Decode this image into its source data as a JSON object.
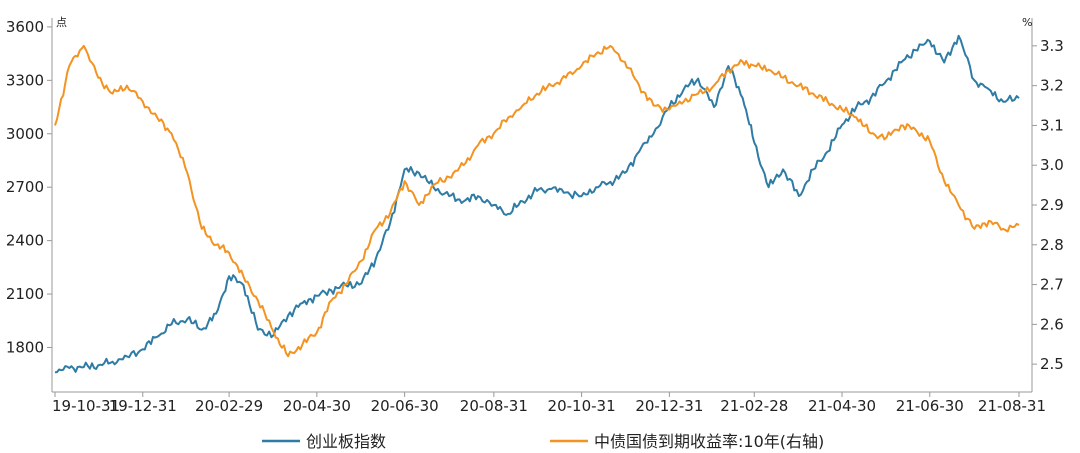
{
  "chart_data": {
    "type": "line",
    "x_tick_labels": [
      "19-10-31",
      "19-12-31",
      "20-02-29",
      "20-04-30",
      "20-06-30",
      "20-08-31",
      "20-10-31",
      "20-12-31",
      "21-02-28",
      "21-04-30",
      "21-06-30",
      "21-08-31"
    ],
    "left_axis": {
      "unit": "点",
      "ticks": [
        1800,
        2100,
        2400,
        2700,
        3000,
        3300,
        3600
      ],
      "range": [
        1550,
        3650
      ]
    },
    "right_axis": {
      "unit": "%",
      "ticks": [
        2.5,
        2.6,
        2.7,
        2.8,
        2.9,
        3.0,
        3.1,
        3.2,
        3.3
      ],
      "range": [
        2.43,
        3.37
      ]
    },
    "legend_position": "bottom",
    "grid": false,
    "series": [
      {
        "name": "创业板指数",
        "axis": "left",
        "color": "#2e7ca5",
        "points": [
          [
            "19-10-31",
            1660
          ],
          [
            "19-11-10",
            1685
          ],
          [
            "19-11-20",
            1690
          ],
          [
            "19-11-30",
            1700
          ],
          [
            "19-12-10",
            1720
          ],
          [
            "19-12-20",
            1750
          ],
          [
            "19-12-31",
            1790
          ],
          [
            "20-01-10",
            1860
          ],
          [
            "20-01-20",
            1930
          ],
          [
            "20-01-31",
            1960
          ],
          [
            "20-02-10",
            1900
          ],
          [
            "20-02-20",
            1990
          ],
          [
            "20-02-29",
            2200
          ],
          [
            "20-03-10",
            2150
          ],
          [
            "20-03-20",
            1900
          ],
          [
            "20-03-31",
            1870
          ],
          [
            "20-04-10",
            1980
          ],
          [
            "20-04-20",
            2050
          ],
          [
            "20-04-30",
            2090
          ],
          [
            "20-05-10",
            2120
          ],
          [
            "20-05-20",
            2150
          ],
          [
            "20-05-31",
            2160
          ],
          [
            "20-06-10",
            2300
          ],
          [
            "20-06-20",
            2500
          ],
          [
            "20-06-30",
            2800
          ],
          [
            "20-07-10",
            2780
          ],
          [
            "20-07-20",
            2700
          ],
          [
            "20-07-31",
            2650
          ],
          [
            "20-08-10",
            2620
          ],
          [
            "20-08-20",
            2650
          ],
          [
            "20-08-31",
            2600
          ],
          [
            "20-09-10",
            2550
          ],
          [
            "20-09-20",
            2620
          ],
          [
            "20-09-30",
            2680
          ],
          [
            "20-10-10",
            2690
          ],
          [
            "20-10-20",
            2670
          ],
          [
            "20-10-31",
            2650
          ],
          [
            "20-11-10",
            2700
          ],
          [
            "20-11-20",
            2730
          ],
          [
            "20-11-30",
            2780
          ],
          [
            "20-12-10",
            2900
          ],
          [
            "20-12-20",
            3000
          ],
          [
            "20-12-31",
            3150
          ],
          [
            "21-01-10",
            3250
          ],
          [
            "21-01-20",
            3310
          ],
          [
            "21-01-31",
            3150
          ],
          [
            "21-02-10",
            3380
          ],
          [
            "21-02-20",
            3200
          ],
          [
            "21-02-28",
            2950
          ],
          [
            "21-03-10",
            2700
          ],
          [
            "21-03-20",
            2800
          ],
          [
            "21-03-31",
            2650
          ],
          [
            "21-04-10",
            2800
          ],
          [
            "21-04-20",
            2900
          ],
          [
            "21-04-30",
            3050
          ],
          [
            "21-05-10",
            3150
          ],
          [
            "21-05-20",
            3200
          ],
          [
            "21-05-31",
            3300
          ],
          [
            "21-06-10",
            3400
          ],
          [
            "21-06-20",
            3470
          ],
          [
            "21-06-30",
            3520
          ],
          [
            "21-07-10",
            3400
          ],
          [
            "21-07-20",
            3550
          ],
          [
            "21-07-31",
            3300
          ],
          [
            "21-08-10",
            3250
          ],
          [
            "21-08-20",
            3180
          ],
          [
            "21-08-31",
            3200
          ]
        ]
      },
      {
        "name": "中债国债到期收益率:10年(右轴)",
        "axis": "right",
        "color": "#f39321",
        "points": [
          [
            "19-10-31",
            3.1
          ],
          [
            "19-11-10",
            3.25
          ],
          [
            "19-11-20",
            3.3
          ],
          [
            "19-11-30",
            3.22
          ],
          [
            "19-12-10",
            3.18
          ],
          [
            "19-12-20",
            3.2
          ],
          [
            "19-12-31",
            3.16
          ],
          [
            "20-01-10",
            3.12
          ],
          [
            "20-01-20",
            3.08
          ],
          [
            "20-01-31",
            2.98
          ],
          [
            "20-02-10",
            2.84
          ],
          [
            "20-02-20",
            2.8
          ],
          [
            "20-02-29",
            2.78
          ],
          [
            "20-03-10",
            2.72
          ],
          [
            "20-03-20",
            2.66
          ],
          [
            "20-03-31",
            2.58
          ],
          [
            "20-04-10",
            2.52
          ],
          [
            "20-04-20",
            2.55
          ],
          [
            "20-04-30",
            2.58
          ],
          [
            "20-05-10",
            2.66
          ],
          [
            "20-05-20",
            2.7
          ],
          [
            "20-05-31",
            2.76
          ],
          [
            "20-06-10",
            2.84
          ],
          [
            "20-06-20",
            2.88
          ],
          [
            "20-06-30",
            2.96
          ],
          [
            "20-07-10",
            2.9
          ],
          [
            "20-07-20",
            2.95
          ],
          [
            "20-07-31",
            2.97
          ],
          [
            "20-08-10",
            3.0
          ],
          [
            "20-08-20",
            3.05
          ],
          [
            "20-08-31",
            3.08
          ],
          [
            "20-09-10",
            3.12
          ],
          [
            "20-09-20",
            3.15
          ],
          [
            "20-09-30",
            3.18
          ],
          [
            "20-10-10",
            3.2
          ],
          [
            "20-10-20",
            3.22
          ],
          [
            "20-10-31",
            3.25
          ],
          [
            "20-11-10",
            3.28
          ],
          [
            "20-11-20",
            3.3
          ],
          [
            "20-11-30",
            3.26
          ],
          [
            "20-12-10",
            3.2
          ],
          [
            "20-12-20",
            3.15
          ],
          [
            "20-12-31",
            3.14
          ],
          [
            "21-01-10",
            3.16
          ],
          [
            "21-01-20",
            3.18
          ],
          [
            "21-01-31",
            3.2
          ],
          [
            "21-02-10",
            3.24
          ],
          [
            "21-02-20",
            3.26
          ],
          [
            "21-02-28",
            3.25
          ],
          [
            "21-03-10",
            3.24
          ],
          [
            "21-03-20",
            3.22
          ],
          [
            "21-03-31",
            3.2
          ],
          [
            "21-04-10",
            3.18
          ],
          [
            "21-04-20",
            3.16
          ],
          [
            "21-04-30",
            3.14
          ],
          [
            "21-05-10",
            3.12
          ],
          [
            "21-05-20",
            3.08
          ],
          [
            "21-05-31",
            3.07
          ],
          [
            "21-06-10",
            3.1
          ],
          [
            "21-06-20",
            3.09
          ],
          [
            "21-06-30",
            3.06
          ],
          [
            "21-07-10",
            2.96
          ],
          [
            "21-07-20",
            2.9
          ],
          [
            "21-07-31",
            2.84
          ],
          [
            "21-08-10",
            2.86
          ],
          [
            "21-08-20",
            2.84
          ],
          [
            "21-08-31",
            2.85
          ]
        ]
      }
    ]
  }
}
